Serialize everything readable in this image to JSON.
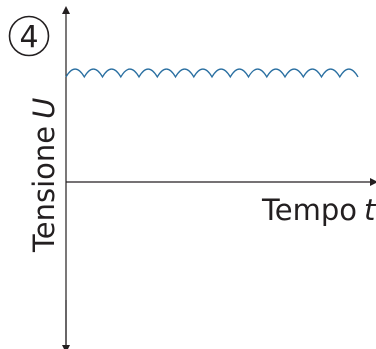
{
  "chart_data": {
    "type": "line",
    "panel_number": "4",
    "xlabel": "Tempo",
    "xlabel_symbol": "t",
    "ylabel": "Tensione",
    "ylabel_symbol": "U",
    "grid": false,
    "legend": "none",
    "xlim": [
      0,
      1
    ],
    "ylim": [
      -1,
      1
    ],
    "series": [
      {
        "color": "#2a6fa1",
        "shape": "rectified ripple",
        "level": 0.9,
        "ripple": 0.04,
        "arches": 16
      }
    ]
  }
}
